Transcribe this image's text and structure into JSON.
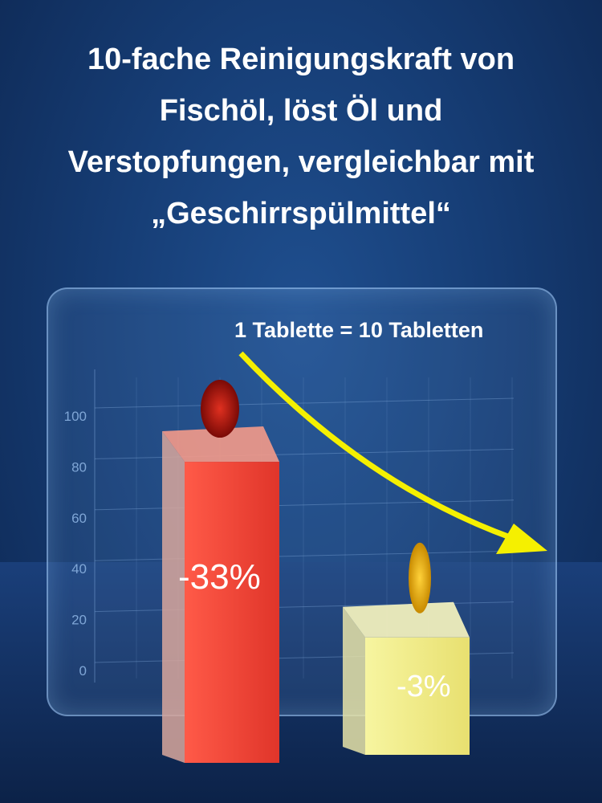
{
  "title_lines": [
    "10-fache Reinigungskraft von",
    "Fischöl, löst Öl und",
    "Verstopfungen, vergleichbar mit",
    "„Geschirrspülmittel“"
  ],
  "annotation": "1 Tablette = 10 Tabletten",
  "colors": {
    "background": "#163d75",
    "bar_red": "#f0473a",
    "bar_yellow": "#f3ef8a",
    "arrow": "#f5f000"
  },
  "chart_data": {
    "type": "bar",
    "yticks": [
      0,
      20,
      40,
      60,
      80,
      100
    ],
    "ylim": [
      0,
      100
    ],
    "values": [
      82,
      13
    ],
    "data_labels": [
      "-33%",
      "-3%"
    ],
    "grid": true
  }
}
